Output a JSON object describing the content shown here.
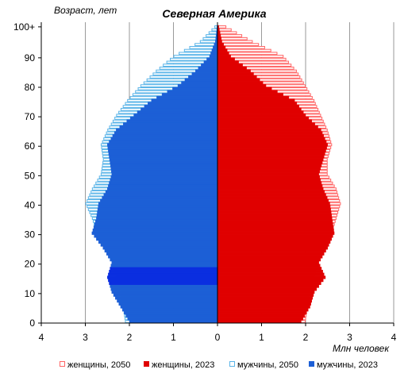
{
  "chart_data": {
    "type": "population-pyramid",
    "title": "Северная Америка",
    "ylabel": "Возраст, лет",
    "xlabel": "Млн человек",
    "x_ticks": [
      "4",
      "3",
      "2",
      "1",
      "0",
      "1",
      "2",
      "3",
      "4"
    ],
    "y_ticks": [
      "0",
      "10",
      "20",
      "30",
      "40",
      "50",
      "60",
      "70",
      "80",
      "90",
      "100+"
    ],
    "xlim": [
      -4,
      4
    ],
    "ages": "0..100+ (single years)",
    "legend_position": "bottom",
    "colors": {
      "women_2050": "#ff6666",
      "women_2023": "#e00000",
      "men_2050": "#5ab4e8",
      "men_2023": "#1c5fd6",
      "men_2023_dark": "#0a2ee0"
    },
    "series": [
      {
        "name": "женщины, 2050",
        "style": "outline",
        "side": "right",
        "values_mln_at_ages": {
          "0": 2.0,
          "10": 2.1,
          "15": 2.2,
          "20": 2.3,
          "25": 2.4,
          "30": 2.6,
          "35": 2.7,
          "40": 2.8,
          "45": 2.7,
          "50": 2.5,
          "55": 2.5,
          "60": 2.6,
          "65": 2.5,
          "70": 2.35,
          "75": 2.2,
          "80": 2.0,
          "85": 1.8,
          "90": 1.5,
          "95": 0.8,
          "100": 0.2
        }
      },
      {
        "name": "женщины, 2023",
        "style": "filled",
        "side": "right",
        "values_mln_at_ages": {
          "0": 1.9,
          "5": 2.1,
          "10": 2.2,
          "15": 2.45,
          "20": 2.3,
          "25": 2.5,
          "30": 2.65,
          "35": 2.6,
          "40": 2.55,
          "45": 2.4,
          "50": 2.3,
          "55": 2.4,
          "60": 2.5,
          "65": 2.35,
          "70": 2.0,
          "75": 1.75,
          "80": 1.1,
          "85": 0.75,
          "90": 0.3,
          "95": 0.1,
          "100": 0.03
        }
      },
      {
        "name": "мужчины, 2050",
        "style": "outline",
        "side": "left",
        "values_mln_at_ages": {
          "0": 2.1,
          "10": 2.2,
          "15": 2.3,
          "20": 2.4,
          "25": 2.55,
          "30": 2.75,
          "35": 2.85,
          "40": 3.0,
          "45": 2.85,
          "50": 2.65,
          "55": 2.6,
          "60": 2.65,
          "65": 2.5,
          "70": 2.3,
          "75": 2.05,
          "80": 1.75,
          "85": 1.4,
          "90": 1.0,
          "95": 0.4,
          "100": 0.07
        }
      },
      {
        "name": "мужчины, 2023",
        "style": "filled",
        "side": "left",
        "values_mln_at_ages": {
          "0": 2.0,
          "5": 2.2,
          "10": 2.4,
          "15": 2.5,
          "20": 2.4,
          "25": 2.6,
          "30": 2.85,
          "35": 2.75,
          "40": 2.7,
          "45": 2.5,
          "50": 2.4,
          "55": 2.45,
          "60": 2.5,
          "65": 2.3,
          "70": 1.9,
          "75": 1.5,
          "80": 0.9,
          "85": 0.5,
          "90": 0.18,
          "95": 0.05,
          "100": 0.01
        }
      }
    ]
  }
}
